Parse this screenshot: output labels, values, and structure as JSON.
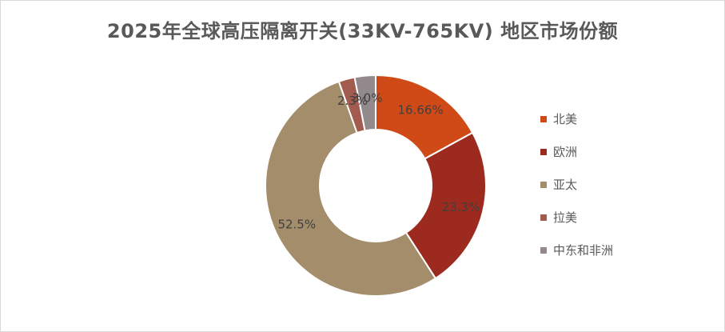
{
  "chart_data": {
    "type": "pie",
    "subtype": "donut",
    "title": "2025年全球高压隔离开关(33KV-765KV) 地区市场份额",
    "categories": [
      "北美",
      "欧洲",
      "亚太",
      "拉美",
      "中东和非洲"
    ],
    "values": [
      16.66,
      23.3,
      52.5,
      2.3,
      3.0
    ],
    "labels": [
      "16.66%",
      "23.3%",
      "52.5%",
      "2.3%",
      "3.0%"
    ],
    "colors": [
      "#D04A18",
      "#9C2A1E",
      "#A48D6A",
      "#A25B4E",
      "#928A8C"
    ],
    "legend_position": "right"
  }
}
